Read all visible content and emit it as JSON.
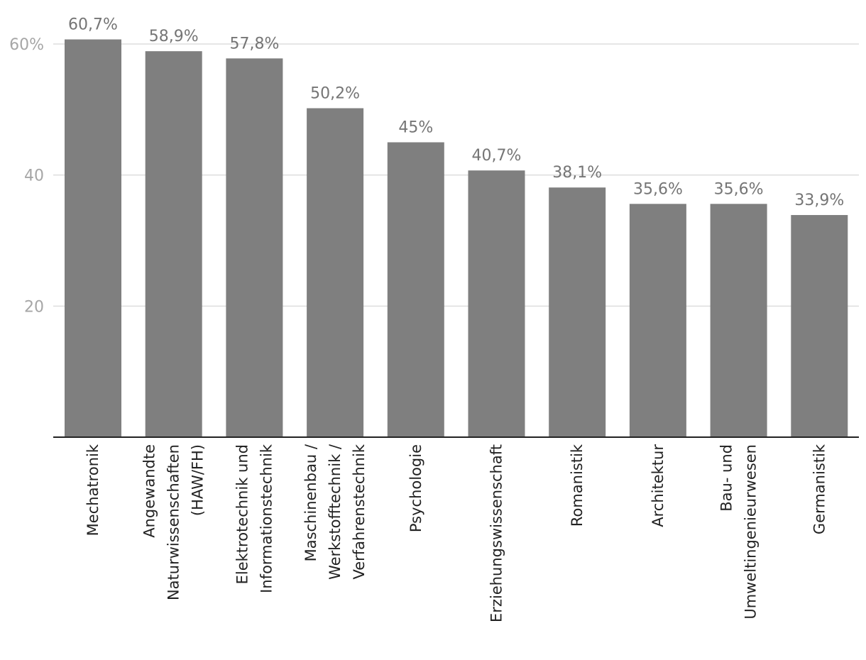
{
  "chart_data": {
    "type": "bar",
    "categories": [
      [
        "Mechatronik"
      ],
      [
        "Angewandte",
        "Naturwissenschaften",
        "(HAW/FH)"
      ],
      [
        "Elektrotechnik und",
        "Informationstechnik"
      ],
      [
        "Maschinenbau /",
        "Werkstofftechnik /",
        "Verfahrenstechnik"
      ],
      [
        "Psychologie"
      ],
      [
        "Erziehungswissenschaft"
      ],
      [
        "Romanistik"
      ],
      [
        "Architektur"
      ],
      [
        "Bau- und",
        "Umweltingenieurwesen"
      ],
      [
        "Germanistik"
      ]
    ],
    "values": [
      60.7,
      58.9,
      57.8,
      50.2,
      45,
      40.7,
      38.1,
      35.6,
      35.6,
      33.9
    ],
    "value_labels": [
      "60,7%",
      "58,9%",
      "57,8%",
      "50,2%",
      "45%",
      "40,7%",
      "38,1%",
      "35,6%",
      "35,6%",
      "33,9%"
    ],
    "yticks": [
      20,
      40,
      60
    ],
    "ytick_labels": [
      "20",
      "40",
      "60%"
    ],
    "ylim": [
      0,
      60
    ],
    "grid": true,
    "bar_color": "#7f7f7f"
  }
}
